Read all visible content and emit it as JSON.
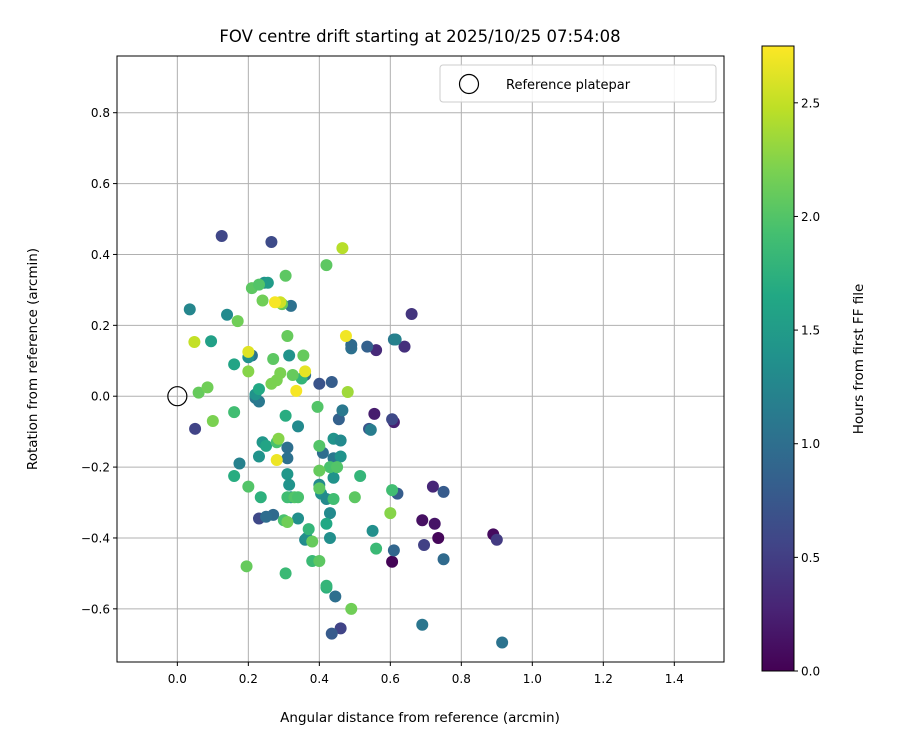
{
  "chart_data": {
    "type": "scatter",
    "title": "FOV centre drift starting at 2025/10/25 07:54:08",
    "xlabel": "Angular distance from reference (arcmin)",
    "ylabel": "Rotation from reference (arcmin)",
    "xlim": [
      -0.17,
      1.54
    ],
    "ylim": [
      -0.75,
      0.96
    ],
    "xticks": [
      0.0,
      0.2,
      0.4,
      0.6,
      0.8,
      1.0,
      1.2,
      1.4
    ],
    "xtick_labels": [
      "0.0",
      "0.2",
      "0.4",
      "0.6",
      "0.8",
      "1.0",
      "1.2",
      "1.4"
    ],
    "yticks": [
      -0.6,
      -0.4,
      -0.2,
      0.0,
      0.2,
      0.4,
      0.6,
      0.8
    ],
    "ytick_labels": [
      "−0.6",
      "−0.4",
      "−0.2",
      "0.0",
      "0.2",
      "0.4",
      "0.6",
      "0.8"
    ],
    "grid": true,
    "legend": {
      "position": "top-right",
      "label": "Reference platepar"
    },
    "reference_point": {
      "x": 0.0,
      "y": 0.0
    },
    "colorbar": {
      "label": "Hours from first FF file",
      "range": [
        0.0,
        2.75
      ],
      "ticks": [
        0.0,
        0.5,
        1.0,
        1.5,
        2.0,
        2.5
      ],
      "tick_labels": [
        "0.0",
        "0.5",
        "1.0",
        "1.5",
        "2.0",
        "2.5"
      ],
      "colormap": "viridis"
    },
    "points": [
      {
        "x": 0.605,
        "y": -0.467,
        "c": 0.02
      },
      {
        "x": 0.735,
        "y": -0.4,
        "c": 0.05
      },
      {
        "x": 0.89,
        "y": -0.39,
        "c": 0.08
      },
      {
        "x": 0.69,
        "y": -0.35,
        "c": 0.12
      },
      {
        "x": 0.725,
        "y": -0.36,
        "c": 0.15
      },
      {
        "x": 0.555,
        "y": -0.05,
        "c": 0.22
      },
      {
        "x": 0.61,
        "y": -0.073,
        "c": 0.25
      },
      {
        "x": 0.72,
        "y": -0.255,
        "c": 0.3
      },
      {
        "x": 0.56,
        "y": 0.13,
        "c": 0.33
      },
      {
        "x": 0.64,
        "y": 0.14,
        "c": 0.38
      },
      {
        "x": 0.66,
        "y": 0.232,
        "c": 0.42
      },
      {
        "x": 0.9,
        "y": -0.405,
        "c": 0.47
      },
      {
        "x": 0.695,
        "y": -0.42,
        "c": 0.52
      },
      {
        "x": 0.46,
        "y": -0.655,
        "c": 0.55
      },
      {
        "x": 0.05,
        "y": -0.092,
        "c": 0.55
      },
      {
        "x": 0.125,
        "y": 0.452,
        "c": 0.58
      },
      {
        "x": 0.265,
        "y": 0.435,
        "c": 0.62
      },
      {
        "x": 0.23,
        "y": -0.345,
        "c": 0.6
      },
      {
        "x": 0.605,
        "y": -0.065,
        "c": 0.6
      },
      {
        "x": 0.75,
        "y": -0.27,
        "c": 0.78
      },
      {
        "x": 0.62,
        "y": -0.275,
        "c": 0.8
      },
      {
        "x": 0.4,
        "y": 0.035,
        "c": 0.7
      },
      {
        "x": 0.54,
        "y": -0.092,
        "c": 0.72
      },
      {
        "x": 0.455,
        "y": -0.065,
        "c": 0.85
      },
      {
        "x": 0.435,
        "y": 0.04,
        "c": 0.8
      },
      {
        "x": 0.435,
        "y": -0.67,
        "c": 0.78
      },
      {
        "x": 0.61,
        "y": -0.435,
        "c": 0.9
      },
      {
        "x": 0.75,
        "y": -0.46,
        "c": 0.95
      },
      {
        "x": 0.915,
        "y": -0.695,
        "c": 1.05
      },
      {
        "x": 0.69,
        "y": -0.645,
        "c": 1.08
      },
      {
        "x": 0.445,
        "y": -0.565,
        "c": 1.0
      },
      {
        "x": 0.535,
        "y": 0.14,
        "c": 0.85
      },
      {
        "x": 0.49,
        "y": 0.135,
        "c": 1.02
      },
      {
        "x": 0.49,
        "y": 0.145,
        "c": 0.95
      },
      {
        "x": 0.36,
        "y": 0.06,
        "c": 1.0
      },
      {
        "x": 0.32,
        "y": 0.255,
        "c": 1.02
      },
      {
        "x": 0.21,
        "y": 0.115,
        "c": 1.05
      },
      {
        "x": 0.22,
        "y": -0.005,
        "c": 1.1
      },
      {
        "x": 0.23,
        "y": -0.015,
        "c": 1.1
      },
      {
        "x": 0.27,
        "y": -0.335,
        "c": 0.95
      },
      {
        "x": 0.25,
        "y": -0.34,
        "c": 0.98
      },
      {
        "x": 0.31,
        "y": -0.145,
        "c": 1.0
      },
      {
        "x": 0.31,
        "y": -0.175,
        "c": 1.02
      },
      {
        "x": 0.41,
        "y": -0.16,
        "c": 0.98
      },
      {
        "x": 0.44,
        "y": -0.175,
        "c": 1.1
      },
      {
        "x": 0.465,
        "y": -0.04,
        "c": 1.1
      },
      {
        "x": 0.545,
        "y": -0.095,
        "c": 1.15
      },
      {
        "x": 0.61,
        "y": 0.16,
        "c": 1.1
      },
      {
        "x": 0.615,
        "y": 0.16,
        "c": 1.2
      },
      {
        "x": 0.175,
        "y": -0.19,
        "c": 1.2
      },
      {
        "x": 0.035,
        "y": 0.245,
        "c": 1.25
      },
      {
        "x": 0.14,
        "y": 0.23,
        "c": 1.3
      },
      {
        "x": 0.245,
        "y": 0.32,
        "c": 1.4
      },
      {
        "x": 0.2,
        "y": 0.11,
        "c": 1.38
      },
      {
        "x": 0.22,
        "y": 0.005,
        "c": 1.4
      },
      {
        "x": 0.24,
        "y": -0.13,
        "c": 1.45
      },
      {
        "x": 0.23,
        "y": -0.17,
        "c": 1.4
      },
      {
        "x": 0.31,
        "y": -0.22,
        "c": 1.45
      },
      {
        "x": 0.315,
        "y": -0.25,
        "c": 1.4
      },
      {
        "x": 0.32,
        "y": -0.285,
        "c": 1.35
      },
      {
        "x": 0.34,
        "y": -0.345,
        "c": 1.35
      },
      {
        "x": 0.36,
        "y": -0.405,
        "c": 1.3
      },
      {
        "x": 0.365,
        "y": -0.4,
        "c": 1.35
      },
      {
        "x": 0.4,
        "y": -0.25,
        "c": 1.3
      },
      {
        "x": 0.405,
        "y": -0.275,
        "c": 1.38
      },
      {
        "x": 0.42,
        "y": -0.29,
        "c": 1.3
      },
      {
        "x": 0.44,
        "y": -0.23,
        "c": 1.4
      },
      {
        "x": 0.43,
        "y": -0.33,
        "c": 1.3
      },
      {
        "x": 0.43,
        "y": -0.4,
        "c": 1.35
      },
      {
        "x": 0.44,
        "y": -0.12,
        "c": 1.4
      },
      {
        "x": 0.46,
        "y": -0.125,
        "c": 1.3
      },
      {
        "x": 0.46,
        "y": -0.17,
        "c": 1.4
      },
      {
        "x": 0.55,
        "y": -0.38,
        "c": 1.35
      },
      {
        "x": 0.34,
        "y": -0.085,
        "c": 1.3
      },
      {
        "x": 0.315,
        "y": 0.115,
        "c": 1.4
      },
      {
        "x": 0.255,
        "y": 0.32,
        "c": 1.5
      },
      {
        "x": 0.095,
        "y": 0.155,
        "c": 1.55
      },
      {
        "x": 0.16,
        "y": 0.09,
        "c": 1.6
      },
      {
        "x": 0.23,
        "y": 0.02,
        "c": 1.65
      },
      {
        "x": 0.25,
        "y": -0.14,
        "c": 1.6
      },
      {
        "x": 0.16,
        "y": -0.225,
        "c": 1.7
      },
      {
        "x": 0.235,
        "y": -0.285,
        "c": 1.75
      },
      {
        "x": 0.305,
        "y": -0.055,
        "c": 1.7
      },
      {
        "x": 0.42,
        "y": -0.36,
        "c": 1.65
      },
      {
        "x": 0.42,
        "y": -0.54,
        "c": 1.75
      },
      {
        "x": 0.42,
        "y": -0.535,
        "c": 1.8
      },
      {
        "x": 0.38,
        "y": -0.465,
        "c": 1.85
      },
      {
        "x": 0.37,
        "y": -0.375,
        "c": 1.8
      },
      {
        "x": 0.35,
        "y": 0.05,
        "c": 1.8
      },
      {
        "x": 0.305,
        "y": -0.5,
        "c": 1.85
      },
      {
        "x": 0.515,
        "y": -0.225,
        "c": 1.8
      },
      {
        "x": 0.56,
        "y": -0.43,
        "c": 1.85
      },
      {
        "x": 0.605,
        "y": -0.265,
        "c": 1.9
      },
      {
        "x": 0.16,
        "y": -0.045,
        "c": 1.9
      },
      {
        "x": 0.28,
        "y": -0.13,
        "c": 1.95
      },
      {
        "x": 0.3,
        "y": -0.35,
        "c": 1.95
      },
      {
        "x": 0.31,
        "y": -0.285,
        "c": 1.9
      },
      {
        "x": 0.33,
        "y": -0.285,
        "c": 2.0
      },
      {
        "x": 0.34,
        "y": -0.285,
        "c": 1.95
      },
      {
        "x": 0.43,
        "y": -0.2,
        "c": 1.95
      },
      {
        "x": 0.44,
        "y": -0.29,
        "c": 1.9
      },
      {
        "x": 0.45,
        "y": -0.2,
        "c": 2.0
      },
      {
        "x": 0.4,
        "y": -0.21,
        "c": 2.1
      },
      {
        "x": 0.4,
        "y": -0.26,
        "c": 2.05
      },
      {
        "x": 0.4,
        "y": -0.14,
        "c": 2.0
      },
      {
        "x": 0.395,
        "y": -0.03,
        "c": 2.0
      },
      {
        "x": 0.5,
        "y": -0.285,
        "c": 2.05
      },
      {
        "x": 0.21,
        "y": 0.305,
        "c": 2.05
      },
      {
        "x": 0.23,
        "y": 0.315,
        "c": 2.0
      },
      {
        "x": 0.305,
        "y": 0.34,
        "c": 2.05
      },
      {
        "x": 0.295,
        "y": 0.26,
        "c": 2.1
      },
      {
        "x": 0.31,
        "y": 0.17,
        "c": 2.1
      },
      {
        "x": 0.27,
        "y": 0.105,
        "c": 2.05
      },
      {
        "x": 0.325,
        "y": 0.06,
        "c": 2.1
      },
      {
        "x": 0.355,
        "y": 0.115,
        "c": 2.1
      },
      {
        "x": 0.42,
        "y": 0.37,
        "c": 2.05
      },
      {
        "x": 0.17,
        "y": 0.212,
        "c": 2.15
      },
      {
        "x": 0.24,
        "y": 0.27,
        "c": 2.15
      },
      {
        "x": 0.06,
        "y": 0.01,
        "c": 2.1
      },
      {
        "x": 0.085,
        "y": 0.025,
        "c": 2.15
      },
      {
        "x": 0.1,
        "y": -0.07,
        "c": 2.2
      },
      {
        "x": 0.2,
        "y": 0.07,
        "c": 2.25
      },
      {
        "x": 0.265,
        "y": 0.035,
        "c": 2.2
      },
      {
        "x": 0.28,
        "y": 0.045,
        "c": 2.2
      },
      {
        "x": 0.285,
        "y": -0.12,
        "c": 2.25
      },
      {
        "x": 0.29,
        "y": 0.065,
        "c": 2.2
      },
      {
        "x": 0.2,
        "y": -0.255,
        "c": 2.0
      },
      {
        "x": 0.195,
        "y": -0.48,
        "c": 2.1
      },
      {
        "x": 0.31,
        "y": -0.355,
        "c": 2.15
      },
      {
        "x": 0.38,
        "y": -0.41,
        "c": 2.1
      },
      {
        "x": 0.4,
        "y": -0.465,
        "c": 2.05
      },
      {
        "x": 0.49,
        "y": -0.6,
        "c": 2.15
      },
      {
        "x": 0.6,
        "y": -0.33,
        "c": 2.25
      },
      {
        "x": 0.48,
        "y": 0.012,
        "c": 2.35
      },
      {
        "x": 0.465,
        "y": 0.418,
        "c": 2.45
      },
      {
        "x": 0.048,
        "y": 0.153,
        "c": 2.5
      },
      {
        "x": 0.29,
        "y": 0.265,
        "c": 2.55
      },
      {
        "x": 0.2,
        "y": 0.125,
        "c": 2.62
      },
      {
        "x": 0.275,
        "y": 0.265,
        "c": 2.72
      },
      {
        "x": 0.28,
        "y": -0.18,
        "c": 2.68
      },
      {
        "x": 0.335,
        "y": 0.015,
        "c": 2.72
      },
      {
        "x": 0.36,
        "y": 0.07,
        "c": 2.65
      },
      {
        "x": 0.475,
        "y": 0.17,
        "c": 2.7
      }
    ]
  },
  "colors": {
    "viridis_stops": [
      "#440154",
      "#482475",
      "#414487",
      "#355f8d",
      "#2a788e",
      "#21918c",
      "#22a884",
      "#44bf70",
      "#7ad151",
      "#bddf26",
      "#fde725"
    ],
    "grid": "#b0b0b0",
    "axis": "#000000",
    "reference_marker": "#000000"
  }
}
